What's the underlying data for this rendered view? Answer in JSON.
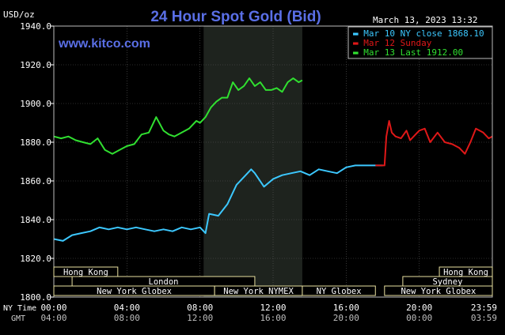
{
  "chart_data": {
    "type": "line",
    "title": "24 Hour Spot Gold (Bid)",
    "ylabel": "USD/oz",
    "brand": "www.kitco.com",
    "timestamp": "March 13, 2023 13:32",
    "ylim": [
      1800,
      1940
    ],
    "y_ticks": [
      "1940.0",
      "1920.0",
      "1900.0",
      "1880.0",
      "1860.0",
      "1840.0",
      "1820.0",
      "1800.0"
    ],
    "x_range_hours": [
      0,
      24
    ],
    "x_ticks_ny": [
      "00:00",
      "04:00",
      "08:00",
      "12:00",
      "16:00",
      "20:00",
      "23:59"
    ],
    "x_ticks_gmt": [
      "04:00",
      "08:00",
      "12:00",
      "16:00",
      "20:00",
      "00:00",
      "03:59"
    ],
    "ny_time_label": "NY Time",
    "gmt_label": "GMT",
    "grid": true,
    "legend_position": "top-right",
    "colors": {
      "background": "#000000",
      "plot_bg": "#000000",
      "highlight_bg": "#1e231e",
      "grid": "#5a5a5a",
      "axis_text": "#ffffff",
      "title": "#5a6fe6",
      "brand": "#5a6fe6",
      "session_box": "#e8e0a0",
      "session_text": "#ffffff"
    },
    "highlight_window_hours": [
      8.2,
      13.6
    ],
    "legend": [
      {
        "label": "Mar 10 NY close 1868.10",
        "color": "#3cc8ff"
      },
      {
        "label": "Mar 12 Sunday",
        "color": "#e01818"
      },
      {
        "label": "Mar 13 Last 1912.00",
        "color": "#30e030"
      }
    ],
    "sessions": {
      "left": [
        {
          "name": "Hong Kong",
          "start": 0,
          "end": 3.5,
          "row": 0
        },
        {
          "name": "London",
          "start": 1.0,
          "end": 11.0,
          "row": 1
        },
        {
          "name": "New York Globex",
          "start": 0,
          "end": 8.8,
          "row": 2
        },
        {
          "name": "New York NYMEX",
          "start": 8.8,
          "end": 13.6,
          "row": 2
        },
        {
          "name": "NY Globex",
          "start": 13.6,
          "end": 17.6,
          "row": 2
        }
      ],
      "right": [
        {
          "name": "Hong Kong",
          "start": 21.1,
          "end": 24,
          "row": 0
        },
        {
          "name": "Sydney",
          "start": 19.1,
          "end": 24,
          "row": 1
        },
        {
          "name": "New York Globex",
          "start": 18.1,
          "end": 24,
          "row": 2
        }
      ]
    },
    "series": [
      {
        "name": "Mar 10 NY close 1868.10",
        "color": "#3cc8ff",
        "x": [
          0,
          0.5,
          1.0,
          1.5,
          2.0,
          2.5,
          3.0,
          3.5,
          4.0,
          4.5,
          5.0,
          5.5,
          6.0,
          6.5,
          7.0,
          7.5,
          8.0,
          8.3,
          8.5,
          9.0,
          9.5,
          10.0,
          10.5,
          10.8,
          11.0,
          11.5,
          12.0,
          12.5,
          13.0,
          13.5,
          14.0,
          14.5,
          15.0,
          15.5,
          16.0,
          16.5,
          17.0,
          17.5,
          18.0
        ],
        "y": [
          1830,
          1829,
          1832,
          1833,
          1834,
          1836,
          1835,
          1836,
          1835,
          1836,
          1835,
          1834,
          1835,
          1834,
          1836,
          1835,
          1836,
          1833,
          1843,
          1842,
          1848,
          1858,
          1863,
          1866,
          1864,
          1857,
          1861,
          1863,
          1864,
          1865,
          1863,
          1866,
          1865,
          1864,
          1867,
          1868,
          1868,
          1868,
          1868
        ]
      },
      {
        "name": "Mar 12 Sunday",
        "color": "#e01818",
        "x": [
          17.6,
          18.1,
          18.2,
          18.35,
          18.5,
          18.7,
          19.0,
          19.3,
          19.5,
          19.8,
          20.0,
          20.3,
          20.6,
          21.0,
          21.4,
          21.8,
          22.2,
          22.5,
          22.8,
          23.1,
          23.5,
          23.8,
          24
        ],
        "y": [
          1868,
          1868,
          1883,
          1891,
          1885,
          1883,
          1882,
          1886,
          1881,
          1884,
          1886,
          1887,
          1880,
          1885,
          1880,
          1879,
          1877,
          1874,
          1880,
          1887,
          1885,
          1882,
          1883
        ]
      },
      {
        "name": "Mar 13 Last 1912.00",
        "color": "#30e030",
        "x": [
          0,
          0.4,
          0.8,
          1.2,
          1.6,
          2.0,
          2.4,
          2.8,
          3.2,
          3.6,
          4.0,
          4.4,
          4.8,
          5.2,
          5.6,
          6.0,
          6.3,
          6.6,
          7.0,
          7.4,
          7.8,
          8.0,
          8.3,
          8.6,
          8.9,
          9.2,
          9.5,
          9.8,
          10.1,
          10.4,
          10.7,
          11.0,
          11.3,
          11.6,
          11.9,
          12.2,
          12.5,
          12.8,
          13.1,
          13.4,
          13.6
        ],
        "y": [
          1883,
          1882,
          1883,
          1881,
          1880,
          1879,
          1882,
          1876,
          1874,
          1876,
          1878,
          1879,
          1884,
          1885,
          1893,
          1886,
          1884,
          1883,
          1885,
          1887,
          1891,
          1890,
          1893,
          1898,
          1901,
          1903,
          1903,
          1911,
          1907,
          1909,
          1913,
          1909,
          1911,
          1907,
          1907,
          1908,
          1906,
          1911,
          1913,
          1911,
          1912
        ]
      }
    ]
  }
}
